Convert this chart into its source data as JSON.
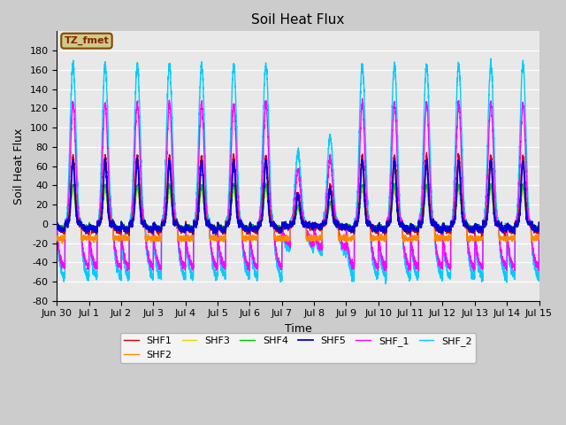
{
  "title": "Soil Heat Flux",
  "xlabel": "Time",
  "ylabel": "Soil Heat Flux",
  "ylim": [
    -80,
    200
  ],
  "yticks": [
    -80,
    -60,
    -40,
    -20,
    0,
    20,
    40,
    60,
    80,
    100,
    120,
    140,
    160,
    180
  ],
  "xtick_labels": [
    "Jun 30",
    "Jul 1",
    "Jul 2",
    "Jul 3",
    "Jul 4",
    "Jul 5",
    "Jul 6",
    "Jul 7",
    "Jul 8",
    "Jul 9",
    "Jul 10",
    "Jul 11",
    "Jul 12",
    "Jul 13",
    "Jul 14",
    "Jul 15"
  ],
  "series_colors": {
    "SHF1": "#cc0000",
    "SHF2": "#ff8800",
    "SHF3": "#dddd00",
    "SHF4": "#00cc00",
    "SHF5": "#0000dd",
    "SHF_1": "#ff00ff",
    "SHF_2": "#00ccff"
  },
  "annotation_text": "TZ_fmet",
  "annotation_bg": "#cccc88",
  "annotation_border": "#884400",
  "plot_bg": "#e8e8e8",
  "fig_bg": "#cccccc",
  "grid_color": "#ffffff",
  "title_fontsize": 11,
  "label_fontsize": 9,
  "tick_fontsize": 8
}
